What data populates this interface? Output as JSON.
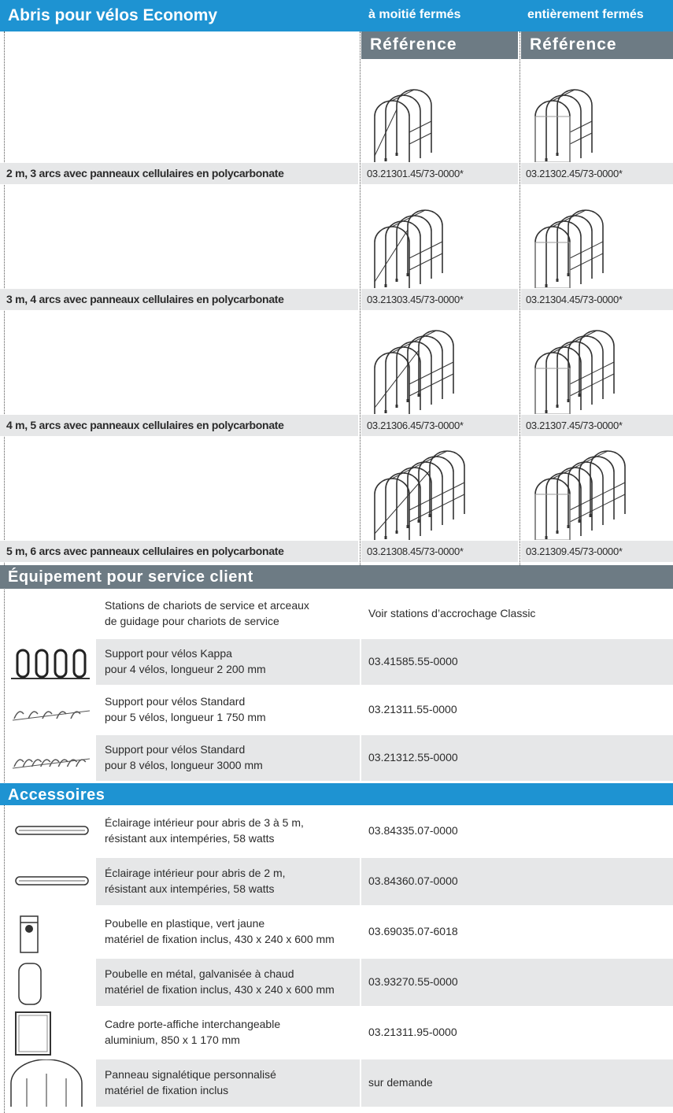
{
  "header": {
    "title": "Abris pour vélos Economy",
    "col_half": "à moitié fermés",
    "col_full": "entièrement fermés",
    "ref_half": "Référence",
    "ref_full": "Référence"
  },
  "shelters": [
    {
      "label": "2 m, 3 arcs avec panneaux cellulaires en polycarbonate",
      "ref_half": "03.21301.45/73-0000*",
      "ref_full": "03.21302.45/73-0000*"
    },
    {
      "label": "3 m, 4 arcs avec panneaux cellulaires en polycarbonate",
      "ref_half": "03.21303.45/73-0000*",
      "ref_full": "03.21304.45/73-0000*"
    },
    {
      "label": "4 m, 5 arcs avec panneaux cellulaires en polycarbonate",
      "ref_half": "03.21306.45/73-0000*",
      "ref_full": "03.21307.45/73-0000*"
    },
    {
      "label": "5 m, 6 arcs avec panneaux cellulaires en polycarbonate",
      "ref_half": "03.21308.45/73-0000*",
      "ref_full": "03.21309.45/73-0000*"
    }
  ],
  "equipment": {
    "title": "Équipement pour service client",
    "rows": [
      {
        "description": [
          "Stations de chariots de service et arceaux",
          "de guidage pour chariots de service"
        ],
        "reference": "Voir stations d’accrochage Classic"
      },
      {
        "description": [
          "Support pour vélos Kappa",
          "pour 4 vélos, longueur 2 200 mm"
        ],
        "reference": "03.41585.55-0000"
      },
      {
        "description": [
          "Support pour vélos Standard",
          "pour 5 vélos, longueur 1 750 mm"
        ],
        "reference": "03.21311.55-0000"
      },
      {
        "description": [
          "Support pour vélos Standard",
          "pour 8 vélos, longueur 3000 mm"
        ],
        "reference": "03.21312.55-0000"
      }
    ]
  },
  "accessories": {
    "title": "Accessoires",
    "rows": [
      {
        "description": [
          "Éclairage intérieur pour abris de 3 à 5 m,",
          "résistant aux intempéries, 58 watts"
        ],
        "reference": "03.84335.07-0000"
      },
      {
        "description": [
          "Éclairage intérieur pour abris de 2 m,",
          "résistant aux intempéries, 58 watts"
        ],
        "reference": "03.84360.07-0000"
      },
      {
        "description": [
          "Poubelle en plastique, vert jaune",
          "matériel de fixation inclus, 430 x 240 x 600 mm"
        ],
        "reference": "03.69035.07-6018"
      },
      {
        "description": [
          "Poubelle en métal, galvanisée à chaud",
          "matériel de fixation inclus, 430 x 240 x 600 mm"
        ],
        "reference": "03.93270.55-0000"
      },
      {
        "description": [
          "Cadre porte-affiche interchangeable",
          "aluminium, 850 x 1 170 mm"
        ],
        "reference": "03.21311.95-0000"
      },
      {
        "description": [
          "Panneau signalétique personnalisé",
          "matériel de fixation inclus"
        ],
        "reference": "sur demande"
      }
    ]
  }
}
